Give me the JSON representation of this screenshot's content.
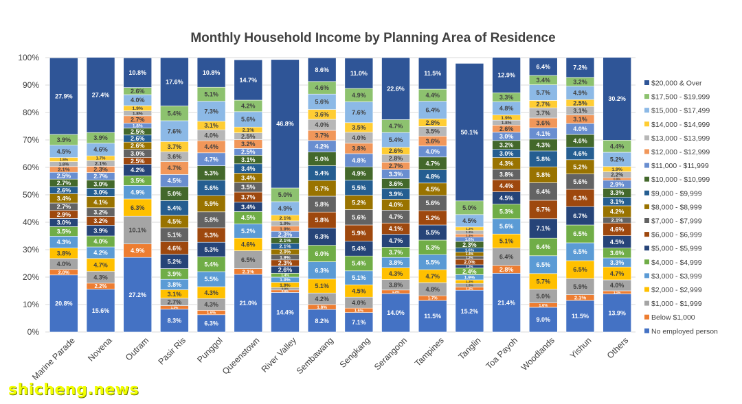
{
  "chart_data": {
    "type": "bar",
    "stacked": true,
    "title": "Monthly Household Income by Planning Area of Residence",
    "xlabel": "",
    "ylabel": "",
    "ylim": [
      0,
      100
    ],
    "yticks": [
      "0%",
      "10%",
      "20%",
      "30%",
      "40%",
      "50%",
      "60%",
      "70%",
      "80%",
      "90%",
      "100%"
    ],
    "legend_position": "right",
    "categories": [
      "Marine Parade",
      "Novena",
      "Outram",
      "Pasir Ris",
      "Punggol",
      "Queenstown",
      "River Valley",
      "Sembawang",
      "Sengkang",
      "Serangoon",
      "Tampines",
      "Tanglin",
      "Toa Payoh",
      "Woodlands",
      "Yishun",
      "Others"
    ],
    "series": [
      {
        "name": "No employed person",
        "color": "#4472c4",
        "values": [
          20.8,
          15.6,
          27.2,
          8.3,
          6.3,
          21.0,
          14.4,
          8.2,
          7.1,
          14.0,
          11.5,
          15.2,
          21.4,
          9.0,
          11.5,
          13.9
        ]
      },
      {
        "name": "Below $1,000",
        "color": "#ed7d31",
        "values": [
          2.0,
          2.2,
          4.9,
          1.3,
          1.6,
          2.1,
          0.9,
          1.8,
          1.6,
          1.3,
          1.7,
          1.2,
          2.8,
          1.6,
          2.1,
          1.1
        ]
      },
      {
        "name": "$1,000 - $1,999",
        "color": "#a5a5a5",
        "values": [
          4.0,
          4.3,
          10.1,
          2.7,
          4.3,
          6.5,
          0.9,
          4.2,
          4.0,
          3.8,
          4.8,
          1.3,
          6.4,
          5.0,
          5.9,
          4.0
        ]
      },
      {
        "name": "$2,000 - $2,999",
        "color": "#ffc000",
        "values": [
          3.8,
          4.7,
          6.3,
          3.1,
          4.3,
          4.6,
          1.9,
          5.1,
          4.5,
          4.3,
          4.7,
          1.3,
          5.1,
          5.7,
          6.5,
          4.7
        ]
      },
      {
        "name": "$3,000 - $3,999",
        "color": "#5b9bd5",
        "values": [
          4.3,
          4.2,
          4.9,
          3.8,
          5.5,
          5.2,
          1.9,
          6.3,
          5.1,
          3.8,
          5.5,
          1.9,
          5.6,
          6.5,
          6.5,
          3.3
        ]
      },
      {
        "name": "$4,000 - $4,999",
        "color": "#70ad47",
        "values": [
          3.5,
          4.0,
          3.5,
          3.9,
          5.4,
          4.5,
          1.4,
          6.0,
          5.4,
          3.7,
          5.3,
          2.4,
          5.3,
          6.4,
          6.5,
          3.6
        ]
      },
      {
        "name": "$5,000 - $5,999",
        "color": "#264478",
        "values": [
          3.0,
          3.9,
          4.2,
          5.2,
          5.3,
          3.4,
          2.6,
          6.3,
          5.4,
          4.7,
          5.5,
          1.2,
          4.5,
          7.1,
          6.7,
          4.5
        ]
      },
      {
        "name": "$6,000 - $6,999",
        "color": "#9e480e",
        "values": [
          2.9,
          3.2,
          2.5,
          4.6,
          5.3,
          3.7,
          2.3,
          5.8,
          5.9,
          4.1,
          5.2,
          2.0,
          4.4,
          6.7,
          6.3,
          4.6
        ]
      },
      {
        "name": "$7,000 - $7,999",
        "color": "#636363",
        "values": [
          2.7,
          3.2,
          3.0,
          5.1,
          5.8,
          3.5,
          1.9,
          5.8,
          5.6,
          4.7,
          5.6,
          1.2,
          3.8,
          6.4,
          5.6,
          2.1
        ]
      },
      {
        "name": "$8,000 - $8,999",
        "color": "#997300",
        "values": [
          3.4,
          4.1,
          2.6,
          4.5,
          5.9,
          3.4,
          2.0,
          5.7,
          5.2,
          4.0,
          4.5,
          1.4,
          4.3,
          5.8,
          5.2,
          4.2
        ]
      },
      {
        "name": "$9,000 - $9,999",
        "color": "#255e91",
        "values": [
          2.6,
          3.0,
          2.6,
          5.4,
          5.6,
          3.4,
          2.1,
          5.4,
          5.5,
          3.9,
          4.8,
          1.6,
          3.0,
          5.8,
          4.6,
          3.1
        ]
      },
      {
        "name": "$10,000 - $10,999",
        "color": "#43682b",
        "values": [
          2.7,
          3.0,
          2.5,
          5.0,
          5.3,
          3.1,
          2.1,
          5.0,
          4.9,
          3.6,
          4.7,
          2.3,
          3.2,
          4.3,
          4.6,
          3.3
        ]
      },
      {
        "name": "$11,000 - $11,999",
        "color": "#698ed0",
        "values": [
          2.5,
          2.7,
          1.8,
          4.5,
          4.7,
          2.5,
          2.3,
          4.2,
          4.8,
          3.3,
          4.0,
          1.6,
          3.0,
          4.1,
          4.0,
          2.9
        ]
      },
      {
        "name": "$12,000 - $12,999",
        "color": "#f1975a",
        "values": [
          2.1,
          2.3,
          2.7,
          4.7,
          4.4,
          3.2,
          1.9,
          3.7,
          3.8,
          2.7,
          3.6,
          1.1,
          2.6,
          3.6,
          3.1,
          0.9
        ]
      },
      {
        "name": "$13,000 - $13,999",
        "color": "#b7b7b7",
        "values": [
          1.8,
          2.1,
          1.8,
          3.6,
          4.0,
          2.5,
          1.9,
          4.0,
          4.0,
          2.8,
          3.5,
          1.3,
          1.8,
          3.7,
          3.1,
          2.2
        ]
      },
      {
        "name": "$14,000 - $14,999",
        "color": "#ffcd33",
        "values": [
          1.5,
          1.7,
          1.9,
          3.7,
          3.1,
          2.1,
          2.1,
          3.6,
          3.5,
          2.6,
          2.8,
          1.3,
          1.9,
          2.7,
          2.5,
          1.9
        ]
      },
      {
        "name": "$15,000 - $17,499",
        "color": "#8cb9e6",
        "values": [
          4.5,
          4.6,
          4.0,
          7.6,
          7.3,
          5.6,
          4.9,
          5.6,
          7.6,
          5.4,
          6.4,
          4.5,
          4.8,
          5.7,
          4.9,
          5.2
        ]
      },
      {
        "name": "$17,500 - $19,999",
        "color": "#8dc26f",
        "values": [
          3.9,
          3.9,
          2.6,
          5.4,
          5.1,
          4.2,
          5.0,
          4.6,
          4.9,
          4.7,
          4.4,
          5.0,
          3.3,
          3.4,
          3.2,
          4.4
        ]
      },
      {
        "name": "$20,000 & Over",
        "color": "#2f5597",
        "values": [
          27.9,
          27.4,
          10.8,
          17.6,
          10.8,
          14.7,
          46.8,
          8.6,
          11.0,
          22.6,
          11.5,
          50.1,
          12.9,
          6.4,
          7.2,
          30.2
        ]
      }
    ]
  },
  "watermark": "shicheng.news"
}
